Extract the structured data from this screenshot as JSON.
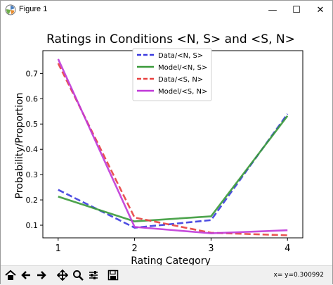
{
  "window": {
    "title": "Figure 1"
  },
  "controls": {
    "minimize": "—",
    "maximize": "☐",
    "close": "✕"
  },
  "toolbar": {
    "tools": [
      "home-icon",
      "back-icon",
      "forward-icon",
      "pan-icon",
      "zoom-icon",
      "configure-icon",
      "save-icon"
    ],
    "coord_readout": "x= y=0.300992"
  },
  "colors": {
    "data_ns": "#3b3bdf",
    "model_ns": "#3a9a3a",
    "data_sn": "#e8403f",
    "model_sn": "#c038d8"
  },
  "chart_data": {
    "type": "line",
    "title": "Ratings in Conditions <N, S> and <S, N>",
    "xlabel": "Rating Category",
    "ylabel": "Probability/Proportion",
    "x": [
      1,
      2,
      3,
      4
    ],
    "xlim": [
      0.8,
      4.2
    ],
    "ylim": [
      0.05,
      0.79
    ],
    "xticks": [
      "1",
      "2",
      "3",
      "4"
    ],
    "yticks": [
      "0.1",
      "0.2",
      "0.3",
      "0.4",
      "0.5",
      "0.6",
      "0.7"
    ],
    "grid": false,
    "legend_position": "top-center",
    "series": [
      {
        "name": "Data/<N, S>",
        "style": "dashed",
        "color": "#3b3bdf",
        "values": [
          0.24,
          0.09,
          0.12,
          0.54
        ]
      },
      {
        "name": "Model/<N, S>",
        "style": "solid",
        "color": "#3a9a3a",
        "values": [
          0.213,
          0.115,
          0.135,
          0.532
        ]
      },
      {
        "name": "Data/<S, N>",
        "style": "dashed",
        "color": "#e8403f",
        "values": [
          0.74,
          0.13,
          0.07,
          0.06
        ]
      },
      {
        "name": "Model/<S, N>",
        "style": "solid",
        "color": "#c038d8",
        "values": [
          0.757,
          0.093,
          0.068,
          0.08
        ]
      }
    ]
  }
}
